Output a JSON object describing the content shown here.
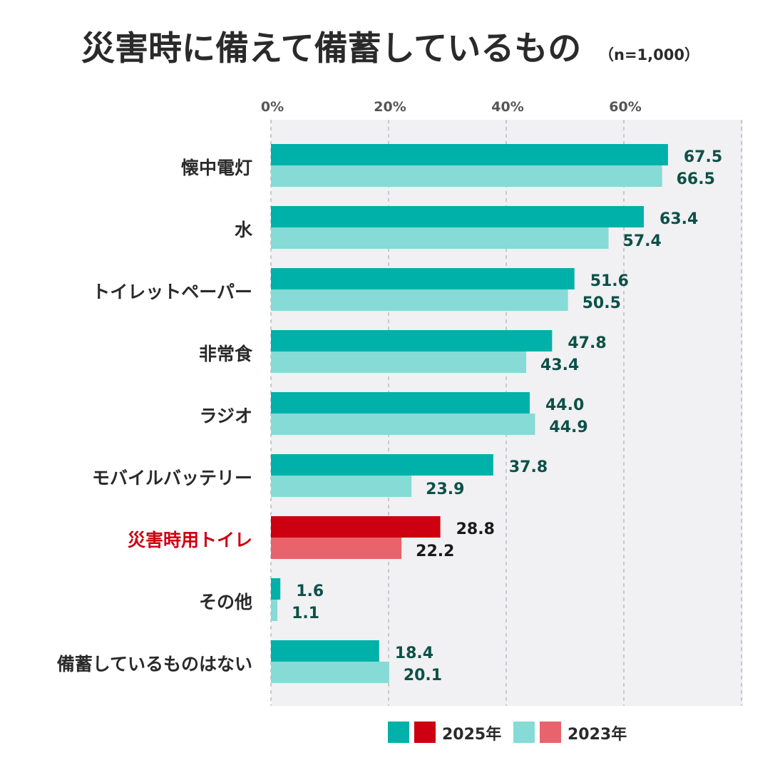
{
  "chart_data": {
    "type": "bar",
    "orientation": "horizontal",
    "title": "災害時に備えて備蓄しているもの",
    "subtitle": "（n=1,000）",
    "xlim": [
      0,
      80
    ],
    "x_ticks": [
      {
        "value": 0,
        "label": "0%"
      },
      {
        "value": 20,
        "label": "20%"
      },
      {
        "value": 40,
        "label": "40%"
      },
      {
        "value": 60,
        "label": "60%"
      }
    ],
    "grid": true,
    "categories": [
      "懐中電灯",
      "水",
      "トイレットペーパー",
      "非常食",
      "ラジオ",
      "モバイルバッテリー",
      "災害時用トイレ",
      "その他",
      "備蓄しているものはない"
    ],
    "highlight_category": "災害時用トイレ",
    "series": [
      {
        "name": "2025年",
        "values": [
          67.5,
          63.4,
          51.6,
          47.8,
          44.0,
          37.8,
          28.8,
          1.6,
          18.4
        ],
        "labels": [
          "67.5",
          "63.4",
          "51.6",
          "47.8",
          "44.0",
          "37.8",
          "28.8",
          "1.6",
          "18.4"
        ]
      },
      {
        "name": "2023年",
        "values": [
          66.5,
          57.4,
          50.5,
          43.4,
          44.9,
          23.9,
          22.2,
          1.1,
          20.1
        ],
        "labels": [
          "66.5",
          "57.4",
          "50.5",
          "43.4",
          "44.9",
          "23.9",
          "22.2",
          "1.1",
          "20.1"
        ]
      }
    ],
    "legend_position": "bottom-right"
  },
  "colors": {
    "series_2025": "#00b1a9",
    "series_2023": "#86dbd6",
    "highlight_2025": "#cc0010",
    "highlight_2023": "#e8636b",
    "highlight_label": "#cc0010",
    "value_label": "#0c5148",
    "value_label_highlight": "#1a1a1a",
    "category_label": "#2a2a2a",
    "title": "#2a2a2a",
    "tick_label": "#555555",
    "plot_background": "#f1f0f2",
    "grid": "#c9c9cf"
  }
}
